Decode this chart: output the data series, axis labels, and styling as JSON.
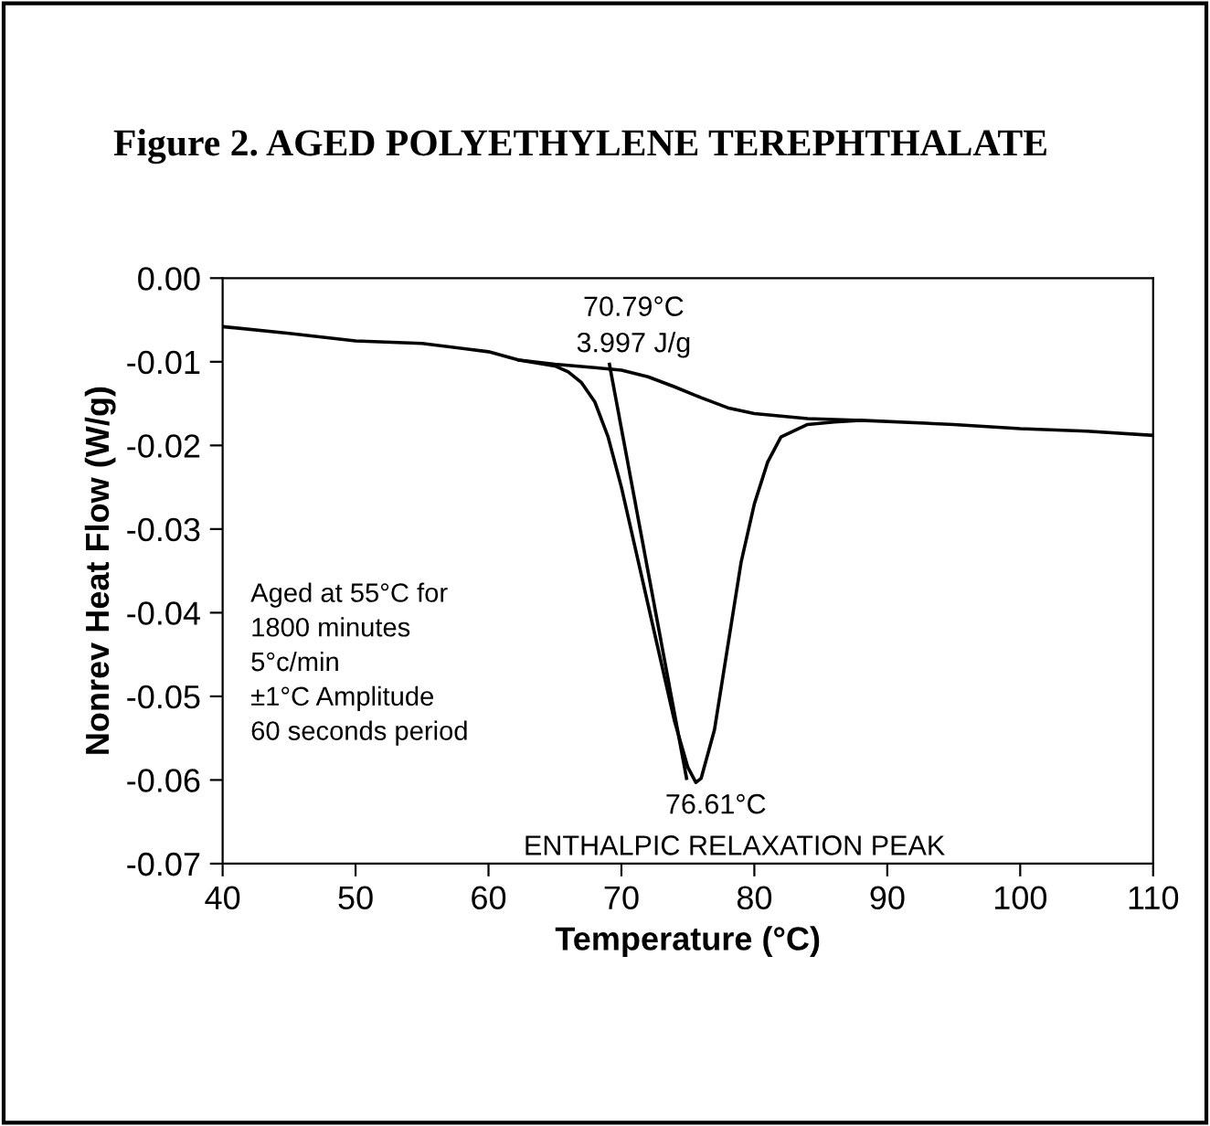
{
  "chart_data": {
    "type": "line",
    "title": "Figure 2. AGED POLYETHYLENE TEREPHTHALATE",
    "xlabel": "Temperature (°C)",
    "ylabel": "Nonrev Heat Flow (W/g)",
    "series": [
      {
        "color": "#000000",
        "x": [
          40,
          45,
          50,
          55,
          60,
          62.3,
          65,
          66,
          67,
          68,
          69,
          70,
          71,
          72,
          73,
          74,
          75,
          75.6,
          76,
          77,
          78,
          79,
          80,
          81,
          82,
          84,
          86,
          88,
          95,
          100,
          105,
          110
        ],
        "values": [
          -0.0058,
          -0.0066,
          -0.0075,
          -0.0078,
          -0.0088,
          -0.0098,
          -0.0105,
          -0.0112,
          -0.0125,
          -0.0148,
          -0.019,
          -0.025,
          -0.032,
          -0.039,
          -0.046,
          -0.053,
          -0.0585,
          -0.0603,
          -0.0598,
          -0.054,
          -0.044,
          -0.034,
          -0.027,
          -0.022,
          -0.019,
          -0.0175,
          -0.0172,
          -0.017,
          -0.0175,
          -0.018,
          -0.0183,
          -0.0188
        ]
      },
      {
        "color": "#000000",
        "x": [
          62.3,
          65,
          68,
          70,
          72,
          74,
          76,
          78,
          80,
          84,
          88
        ],
        "values": [
          -0.0098,
          -0.0103,
          -0.0107,
          -0.011,
          -0.0118,
          -0.013,
          -0.0143,
          -0.0155,
          -0.0162,
          -0.0168,
          -0.017
        ]
      },
      {
        "color": "#000000",
        "x": [
          69.1,
          74.9
        ],
        "values": [
          -0.0103,
          -0.0598
        ]
      }
    ],
    "xlim": [
      40,
      110
    ],
    "xticks": [
      40,
      50,
      60,
      70,
      80,
      90,
      100,
      110
    ],
    "ylim": [
      -0.07,
      0
    ],
    "yticks": [
      {
        "value": -0.07,
        "label": "-0.07"
      },
      {
        "value": -0.06,
        "label": "-0.06"
      },
      {
        "value": -0.05,
        "label": "-0.05"
      },
      {
        "value": -0.04,
        "label": "-0.04"
      },
      {
        "value": -0.03,
        "label": "-0.03"
      },
      {
        "value": -0.02,
        "label": "-0.02"
      },
      {
        "value": -0.01,
        "label": "-0.01"
      },
      {
        "value": 0,
        "label": "0.00"
      }
    ],
    "annotations": [
      "70.79°C\n3.997 J/g",
      "76.61°C",
      "ENTHALPIC RELAXATION PEAK",
      "Aged at 55°C for\n1800 minutes\n5°c/min\n±1°C Amplitude\n60 seconds period"
    ],
    "grid": false,
    "legend": false
  }
}
